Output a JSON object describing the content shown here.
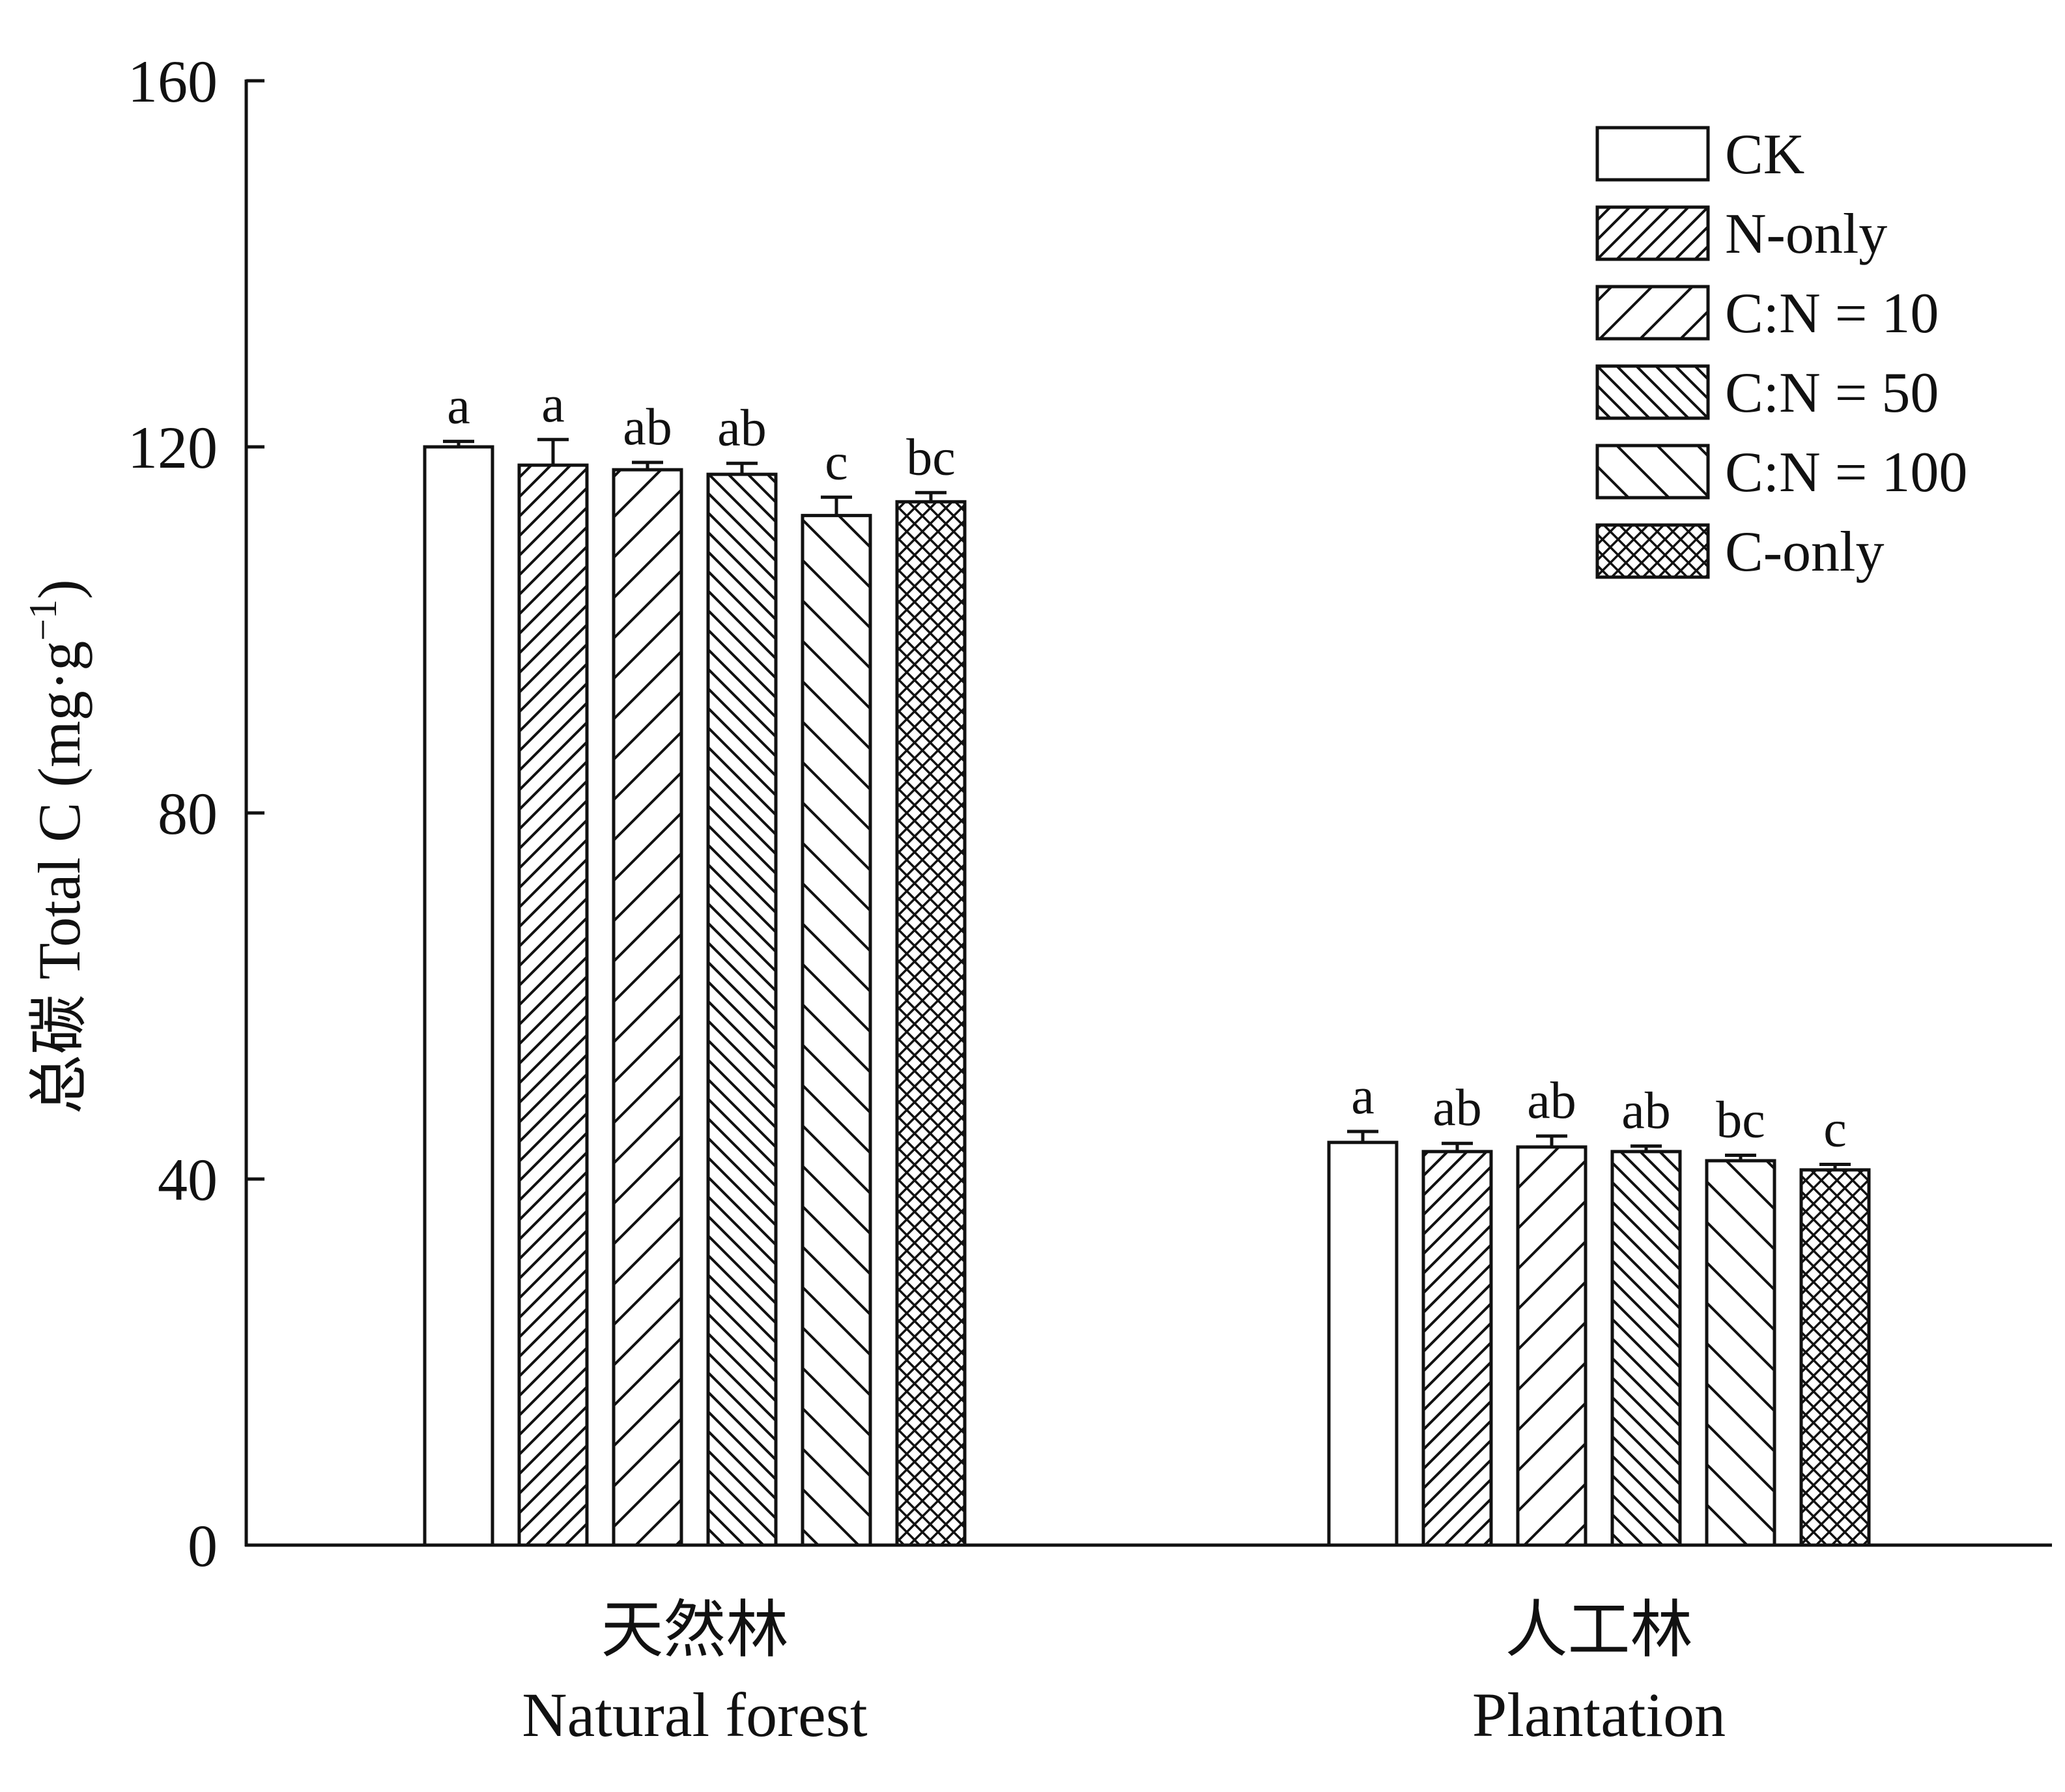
{
  "chart_data": {
    "type": "bar",
    "title": "",
    "ylabel": "总碳 Total C (mg·g",
    "ylabel_superscript": "−1",
    "ylabel_close": ")",
    "ylim": [
      0,
      160
    ],
    "yticks": [
      0,
      40,
      80,
      120,
      160
    ],
    "grid": false,
    "legend_position": "top-right",
    "categories": [
      {
        "zh": "天然林",
        "en": "Natural forest"
      },
      {
        "zh": "人工林",
        "en": "Plantation"
      }
    ],
    "series": [
      {
        "name": "CK",
        "pattern": "none",
        "values": [
          120.0,
          44.0
        ],
        "errors": [
          0.6,
          1.2
        ],
        "letters": [
          "a",
          "a"
        ]
      },
      {
        "name": "N-only",
        "pattern": "dense-diagonal-up",
        "values": [
          118.0,
          43.0
        ],
        "errors": [
          2.8,
          0.9
        ],
        "letters": [
          "a",
          "ab"
        ]
      },
      {
        "name": "C:N = 10",
        "pattern": "diagonal-up",
        "values": [
          117.5,
          43.5
        ],
        "errors": [
          0.8,
          1.2
        ],
        "letters": [
          "ab",
          "ab"
        ]
      },
      {
        "name": "C:N = 50",
        "pattern": "dense-diagonal-down",
        "values": [
          117.0,
          43.0
        ],
        "errors": [
          1.2,
          0.6
        ],
        "letters": [
          "ab",
          "ab"
        ]
      },
      {
        "name": "C:N = 100",
        "pattern": "diagonal-down",
        "values": [
          112.5,
          42.0
        ],
        "errors": [
          2.0,
          0.6
        ],
        "letters": [
          "c",
          "bc"
        ]
      },
      {
        "name": "C-only",
        "pattern": "crosshatch",
        "values": [
          114.0,
          41.0
        ],
        "errors": [
          1.0,
          0.6
        ],
        "letters": [
          "bc",
          "c"
        ]
      }
    ]
  }
}
